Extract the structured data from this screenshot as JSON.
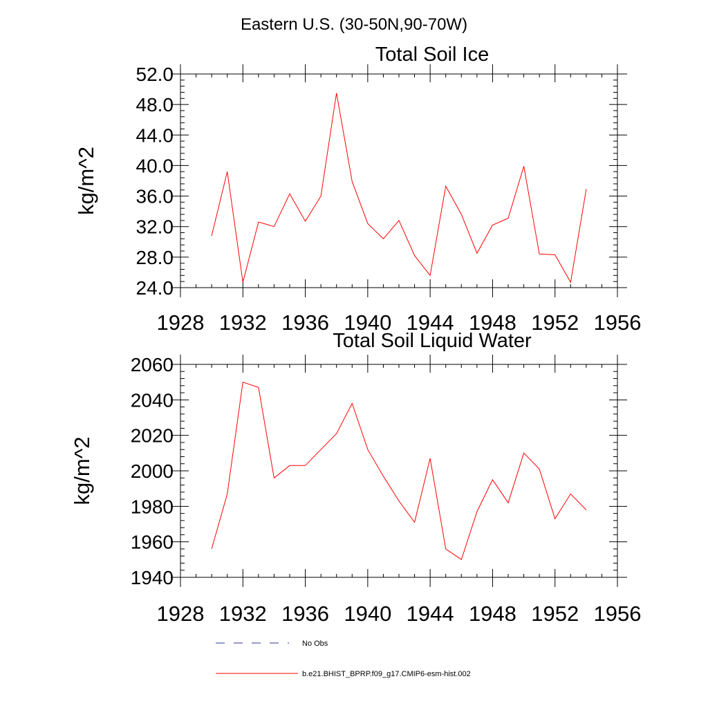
{
  "figure": {
    "suptitle": "Eastern U.S. (30-50N,90-70W)"
  },
  "legend": {
    "entries": [
      {
        "label": "No Obs",
        "color": "#2b3a8c",
        "dash": true
      },
      {
        "label": "b.e21.BHIST_BPRP.f09_g17.CMIP6-esm-hist.002",
        "color": "#ff0000",
        "dash": false
      }
    ]
  },
  "chart_data": [
    {
      "type": "line",
      "title": "Total Soil Ice",
      "xlabel": "",
      "ylabel": "kg/m^2",
      "xlim": [
        1928,
        1956
      ],
      "ylim": [
        24,
        52
      ],
      "xticks": [
        1928,
        1932,
        1936,
        1940,
        1944,
        1948,
        1952,
        1956
      ],
      "xtick_labels": [
        "1928",
        "1932",
        "1936",
        "1940",
        "1944",
        "1948",
        "1952",
        "1956"
      ],
      "yticks": [
        24,
        28,
        32,
        36,
        40,
        44,
        48,
        52
      ],
      "ytick_labels": [
        "24.0",
        "28.0",
        "32.0",
        "36.0",
        "40.0",
        "44.0",
        "48.0",
        "52.0"
      ],
      "grid": false,
      "series": [
        {
          "name": "b.e21.BHIST_BPRP.f09_g17.CMIP6-esm-hist.002",
          "color": "#ff0000",
          "x": [
            1930,
            1931,
            1932,
            1933,
            1934,
            1935,
            1936,
            1937,
            1938,
            1939,
            1940,
            1941,
            1942,
            1943,
            1944,
            1945,
            1946,
            1947,
            1948,
            1949,
            1950,
            1951,
            1952,
            1953,
            1954
          ],
          "y": [
            30.8,
            39.2,
            24.7,
            32.6,
            32.0,
            36.3,
            32.7,
            36.0,
            49.5,
            37.9,
            32.4,
            30.4,
            32.8,
            28.2,
            25.6,
            37.3,
            33.6,
            28.5,
            32.2,
            33.1,
            39.9,
            28.4,
            28.3,
            24.7,
            36.9
          ]
        }
      ]
    },
    {
      "type": "line",
      "title": "Total Soil Liquid Water",
      "xlabel": "",
      "ylabel": "kg/m^2",
      "xlim": [
        1928,
        1956
      ],
      "ylim": [
        1940,
        2060
      ],
      "xticks": [
        1928,
        1932,
        1936,
        1940,
        1944,
        1948,
        1952,
        1956
      ],
      "xtick_labels": [
        "1928",
        "1932",
        "1936",
        "1940",
        "1944",
        "1948",
        "1952",
        "1956"
      ],
      "yticks": [
        1940,
        1960,
        1980,
        2000,
        2020,
        2040,
        2060
      ],
      "ytick_labels": [
        "1940",
        "1960",
        "1980",
        "2000",
        "2020",
        "2040",
        "2060"
      ],
      "grid": false,
      "series": [
        {
          "name": "b.e21.BHIST_BPRP.f09_g17.CMIP6-esm-hist.002",
          "color": "#ff0000",
          "x": [
            1930,
            1931,
            1932,
            1933,
            1934,
            1935,
            1936,
            1937,
            1938,
            1939,
            1940,
            1941,
            1942,
            1943,
            1944,
            1945,
            1946,
            1947,
            1948,
            1949,
            1950,
            1951,
            1952,
            1953,
            1954
          ],
          "y": [
            1956,
            1987,
            2050,
            2047,
            1996,
            2003,
            2003,
            2012,
            2021,
            2038,
            2012,
            1997,
            1983,
            1971,
            2007,
            1956,
            1950,
            1977,
            1995,
            1982,
            2010,
            2001,
            1973,
            1987,
            1978
          ]
        }
      ]
    }
  ]
}
